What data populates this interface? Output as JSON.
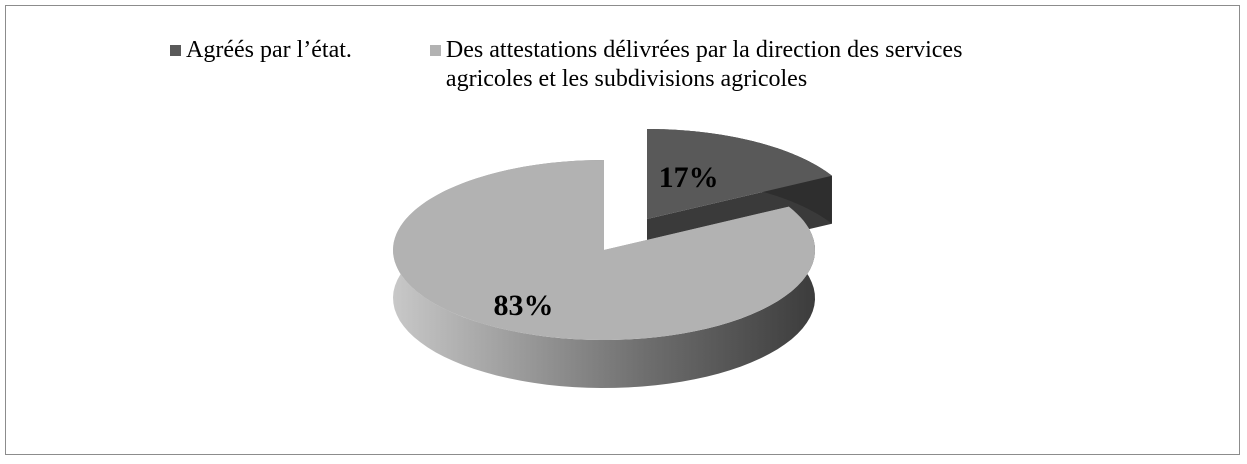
{
  "chart_data": {
    "type": "pie",
    "categories": [
      "Agréés par l’état.",
      "Des attestations délivrées par la direction des services agricoles et les subdivisions agricoles"
    ],
    "values": [
      17,
      83
    ],
    "value_labels": [
      "17%",
      "83%"
    ],
    "colors": [
      "#595959",
      "#b2b2b2"
    ],
    "legend": "top"
  }
}
